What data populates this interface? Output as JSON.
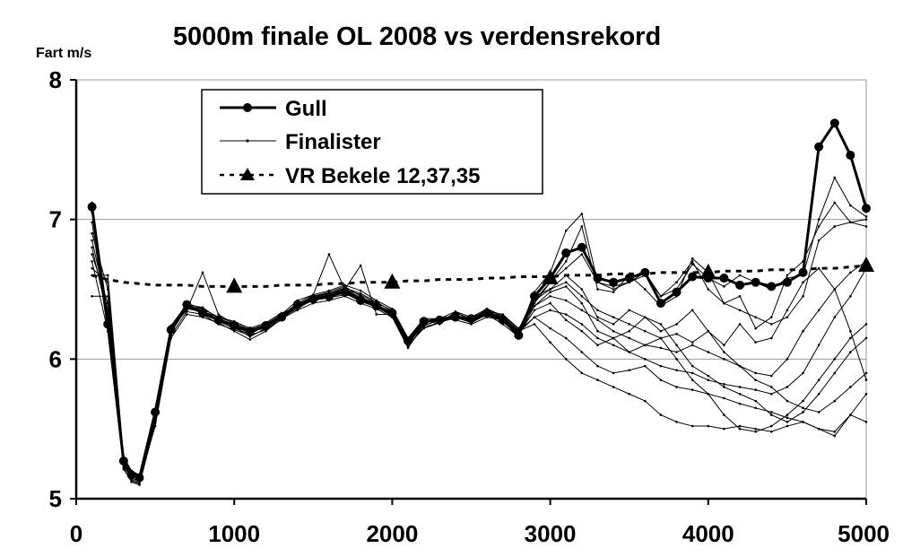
{
  "chart_data": {
    "type": "line",
    "title": "5000m finale OL 2008 vs  verdensrekord",
    "ylabel": "Fart m/s",
    "xlabel": "",
    "xlim": [
      0,
      5000
    ],
    "ylim": [
      5,
      8
    ],
    "xticks": [
      "0",
      "1000",
      "2000",
      "3000",
      "4000",
      "5000"
    ],
    "yticks": [
      "5",
      "6",
      "7",
      "8"
    ],
    "grid": "horizontal",
    "legend_position": "top-left",
    "legend": [
      "Gull",
      "Finalister",
      "VR Bekele 12,37,35"
    ],
    "series": [
      {
        "name": "Gull",
        "style": "thick line with filled circles",
        "color": "#000000",
        "x": [
          100,
          200,
          300,
          350,
          400,
          500,
          600,
          700,
          800,
          900,
          1000,
          1100,
          1200,
          1300,
          1400,
          1500,
          1600,
          1700,
          1800,
          1900,
          2000,
          2100,
          2200,
          2300,
          2400,
          2500,
          2600,
          2700,
          2800,
          2900,
          3000,
          3100,
          3200,
          3300,
          3400,
          3500,
          3600,
          3700,
          3800,
          3900,
          4000,
          4100,
          4200,
          4300,
          4400,
          4500,
          4600,
          4700,
          4800,
          4900,
          5000
        ],
        "values": [
          7.09,
          6.25,
          5.27,
          5.17,
          5.15,
          5.62,
          6.21,
          6.39,
          6.33,
          6.28,
          6.24,
          6.2,
          6.24,
          6.3,
          6.39,
          6.43,
          6.45,
          6.48,
          6.42,
          6.38,
          6.33,
          6.13,
          6.27,
          6.28,
          6.3,
          6.29,
          6.33,
          6.28,
          6.17,
          6.45,
          6.58,
          6.76,
          6.8,
          6.58,
          6.55,
          6.58,
          6.62,
          6.4,
          6.48,
          6.59,
          6.58,
          6.58,
          6.53,
          6.55,
          6.52,
          6.55,
          6.62,
          7.52,
          7.69,
          7.46,
          7.08
        ]
      },
      {
        "name": "VR Bekele 12,37,35",
        "style": "dashed line with triangles",
        "color": "#000000",
        "x": [
          100,
          200,
          300,
          400,
          500,
          600,
          700,
          800,
          900,
          1000,
          1100,
          1200,
          1300,
          1400,
          1500,
          1600,
          1700,
          1800,
          1900,
          2000,
          2100,
          2200,
          2300,
          2400,
          2500,
          2600,
          2700,
          2800,
          2900,
          3000,
          3100,
          3200,
          3300,
          3400,
          3500,
          3600,
          3700,
          3800,
          3900,
          4000,
          4100,
          4200,
          4300,
          4400,
          4500,
          4600,
          4700,
          4800,
          4900,
          5000
        ],
        "values": [
          6.6,
          6.57,
          6.55,
          6.54,
          6.53,
          6.53,
          6.53,
          6.52,
          6.52,
          6.52,
          6.52,
          6.52,
          6.53,
          6.53,
          6.53,
          6.54,
          6.54,
          6.55,
          6.55,
          6.55,
          6.56,
          6.56,
          6.57,
          6.57,
          6.57,
          6.58,
          6.58,
          6.59,
          6.59,
          6.59,
          6.6,
          6.6,
          6.6,
          6.61,
          6.61,
          6.61,
          6.62,
          6.62,
          6.62,
          6.62,
          6.63,
          6.63,
          6.63,
          6.64,
          6.64,
          6.64,
          6.65,
          6.65,
          6.66,
          6.67
        ],
        "marker_x": [
          1000,
          2000,
          3000,
          4000,
          5000
        ],
        "marker_values": [
          6.52,
          6.55,
          6.58,
          6.62,
          6.67
        ]
      },
      {
        "name": "Finalister",
        "style": "thin lines with small dots",
        "color": "#000000",
        "x": [
          100,
          200,
          300,
          350,
          400,
          500,
          600,
          700,
          800,
          900,
          1000,
          1100,
          1200,
          1300,
          1400,
          1500,
          1600,
          1700,
          1800,
          1900,
          2000,
          2100,
          2200,
          2300,
          2400,
          2500,
          2600,
          2700,
          2800,
          2900,
          3000,
          3100,
          3200,
          3300,
          3400,
          3500,
          3600,
          3700,
          3800,
          3900,
          4000,
          4100,
          4200,
          4300,
          4400,
          4500,
          4600,
          4700,
          4800,
          4900,
          5000
        ],
        "runners": [
          [
            7.12,
            6.3,
            5.24,
            5.14,
            5.11,
            5.58,
            6.22,
            6.35,
            6.62,
            6.32,
            6.25,
            6.18,
            6.24,
            6.32,
            6.42,
            6.46,
            6.75,
            6.5,
            6.67,
            6.32,
            6.32,
            6.1,
            6.22,
            6.26,
            6.32,
            6.26,
            6.34,
            6.3,
            6.18,
            6.48,
            6.62,
            6.92,
            7.04,
            6.55,
            6.52,
            6.55,
            6.6,
            6.45,
            6.5,
            6.68,
            6.58,
            6.52,
            6.6,
            6.55,
            6.5,
            6.58,
            6.6,
            7.0,
            7.3,
            7.1,
            7.02
          ],
          [
            7.05,
            6.22,
            5.22,
            5.12,
            5.1,
            5.55,
            6.18,
            6.4,
            6.36,
            6.3,
            6.22,
            6.2,
            6.22,
            6.28,
            6.38,
            6.42,
            6.44,
            6.46,
            6.44,
            6.4,
            6.3,
            6.08,
            6.25,
            6.3,
            6.28,
            6.25,
            6.3,
            6.28,
            6.2,
            6.4,
            6.55,
            6.7,
            6.95,
            6.5,
            6.48,
            6.6,
            6.5,
            6.38,
            6.45,
            6.72,
            6.62,
            6.4,
            6.45,
            6.22,
            6.3,
            6.6,
            6.7,
            6.95,
            7.12,
            6.98,
            6.95
          ],
          [
            6.98,
            6.2,
            5.25,
            5.16,
            5.14,
            5.6,
            6.2,
            6.36,
            6.34,
            6.3,
            6.27,
            6.22,
            6.26,
            6.33,
            6.37,
            6.44,
            6.47,
            6.5,
            6.46,
            6.4,
            6.35,
            6.12,
            6.28,
            6.25,
            6.34,
            6.27,
            6.32,
            6.25,
            6.16,
            6.42,
            6.5,
            6.55,
            6.45,
            6.35,
            6.3,
            6.25,
            6.2,
            6.15,
            6.18,
            6.12,
            6.2,
            6.1,
            6.25,
            6.12,
            6.15,
            6.35,
            6.55,
            6.65,
            6.5,
            6.2,
            5.85
          ],
          [
            6.85,
            6.35,
            5.3,
            5.2,
            5.16,
            5.64,
            6.22,
            6.38,
            6.35,
            6.28,
            6.23,
            6.16,
            6.22,
            6.31,
            6.38,
            6.45,
            6.48,
            6.52,
            6.45,
            6.38,
            6.33,
            6.1,
            6.26,
            6.3,
            6.3,
            6.3,
            6.34,
            6.32,
            6.22,
            6.38,
            6.45,
            6.42,
            6.35,
            6.28,
            6.2,
            6.15,
            6.1,
            6.08,
            6.05,
            6.1,
            6.05,
            6.0,
            5.95,
            5.9,
            5.88,
            6.0,
            6.2,
            6.35,
            6.5,
            6.62,
            6.7
          ],
          [
            6.75,
            6.4,
            5.28,
            5.18,
            5.13,
            5.52,
            6.15,
            6.32,
            6.3,
            6.26,
            6.2,
            6.14,
            6.2,
            6.29,
            6.35,
            6.4,
            6.42,
            6.45,
            6.4,
            6.36,
            6.3,
            6.12,
            6.24,
            6.28,
            6.31,
            6.28,
            6.36,
            6.3,
            6.2,
            6.3,
            6.35,
            6.32,
            6.25,
            6.15,
            6.1,
            6.05,
            6.0,
            5.95,
            5.92,
            5.9,
            5.85,
            5.82,
            5.8,
            5.78,
            5.75,
            5.8,
            5.9,
            6.1,
            6.3,
            6.45,
            6.65
          ],
          [
            6.9,
            6.5,
            5.23,
            5.15,
            5.12,
            5.57,
            6.19,
            6.37,
            6.33,
            6.29,
            6.24,
            6.19,
            6.23,
            6.3,
            6.36,
            6.43,
            6.46,
            6.49,
            6.43,
            6.39,
            6.31,
            6.11,
            6.27,
            6.27,
            6.29,
            6.28,
            6.31,
            6.29,
            6.19,
            6.3,
            6.22,
            6.15,
            6.05,
            5.95,
            5.9,
            5.92,
            5.95,
            5.85,
            5.8,
            5.78,
            5.75,
            5.72,
            5.68,
            5.65,
            5.62,
            5.58,
            5.55,
            5.5,
            5.48,
            5.6,
            5.75
          ],
          [
            6.65,
            6.55,
            5.26,
            5.17,
            5.13,
            5.59,
            6.21,
            6.36,
            6.35,
            6.27,
            6.22,
            6.18,
            6.24,
            6.32,
            6.38,
            6.44,
            6.46,
            6.5,
            6.44,
            6.39,
            6.32,
            6.13,
            6.26,
            6.28,
            6.32,
            6.27,
            6.33,
            6.3,
            6.2,
            6.25,
            6.12,
            6.0,
            5.9,
            5.85,
            5.8,
            5.75,
            5.7,
            5.6,
            5.55,
            5.52,
            5.52,
            5.5,
            5.52,
            5.5,
            5.48,
            5.52,
            5.55,
            5.5,
            5.45,
            5.6,
            5.55
          ],
          [
            6.45,
            6.45,
            5.27,
            5.19,
            5.15,
            5.61,
            6.23,
            6.38,
            6.36,
            6.3,
            6.26,
            6.21,
            6.25,
            6.32,
            6.39,
            6.45,
            6.47,
            6.51,
            6.47,
            6.41,
            6.34,
            6.14,
            6.28,
            6.27,
            6.33,
            6.29,
            6.35,
            6.28,
            6.18,
            6.35,
            6.4,
            6.28,
            6.2,
            6.1,
            6.15,
            6.05,
            6.1,
            6.15,
            6.0,
            5.85,
            5.75,
            5.6,
            5.5,
            5.48,
            5.52,
            5.6,
            5.7,
            5.85,
            6.0,
            6.15,
            6.25
          ],
          [
            6.6,
            6.6,
            5.29,
            5.2,
            5.17,
            5.63,
            6.24,
            6.39,
            6.37,
            6.29,
            6.25,
            6.2,
            6.23,
            6.31,
            6.4,
            6.46,
            6.49,
            6.53,
            6.49,
            6.42,
            6.36,
            6.15,
            6.29,
            6.29,
            6.34,
            6.3,
            6.36,
            6.31,
            6.21,
            6.45,
            6.5,
            6.6,
            6.5,
            6.3,
            6.25,
            6.35,
            6.3,
            6.2,
            6.25,
            6.35,
            6.2,
            6.05,
            5.95,
            5.85,
            5.8,
            5.7,
            5.65,
            5.62,
            5.7,
            5.8,
            5.9
          ],
          [
            6.8,
            6.3,
            5.21,
            5.13,
            5.1,
            5.54,
            6.17,
            6.34,
            6.32,
            6.25,
            6.21,
            6.17,
            6.21,
            6.3,
            6.37,
            6.42,
            6.45,
            6.48,
            6.42,
            6.37,
            6.31,
            6.09,
            6.23,
            6.26,
            6.3,
            6.26,
            6.32,
            6.27,
            6.17,
            6.38,
            6.48,
            6.52,
            6.4,
            6.2,
            6.15,
            6.2,
            6.3,
            6.25,
            6.1,
            5.95,
            5.88,
            5.8,
            5.75,
            5.7,
            5.6,
            5.55,
            5.62,
            5.75,
            5.9,
            6.05,
            6.15
          ],
          [
            6.7,
            6.2,
            5.24,
            5.16,
            5.14,
            5.59,
            6.2,
            6.37,
            6.34,
            6.28,
            6.23,
            6.19,
            6.24,
            6.31,
            6.38,
            6.43,
            6.46,
            6.49,
            6.44,
            6.39,
            6.33,
            6.12,
            6.26,
            6.28,
            6.31,
            6.28,
            6.33,
            6.29,
            6.19,
            6.42,
            6.55,
            6.65,
            6.75,
            6.55,
            6.5,
            6.55,
            6.62,
            6.45,
            6.55,
            6.7,
            6.5,
            6.4,
            6.35,
            6.3,
            6.25,
            6.3,
            6.45,
            6.85,
            6.95,
            6.98,
            7.0
          ]
        ]
      }
    ]
  }
}
